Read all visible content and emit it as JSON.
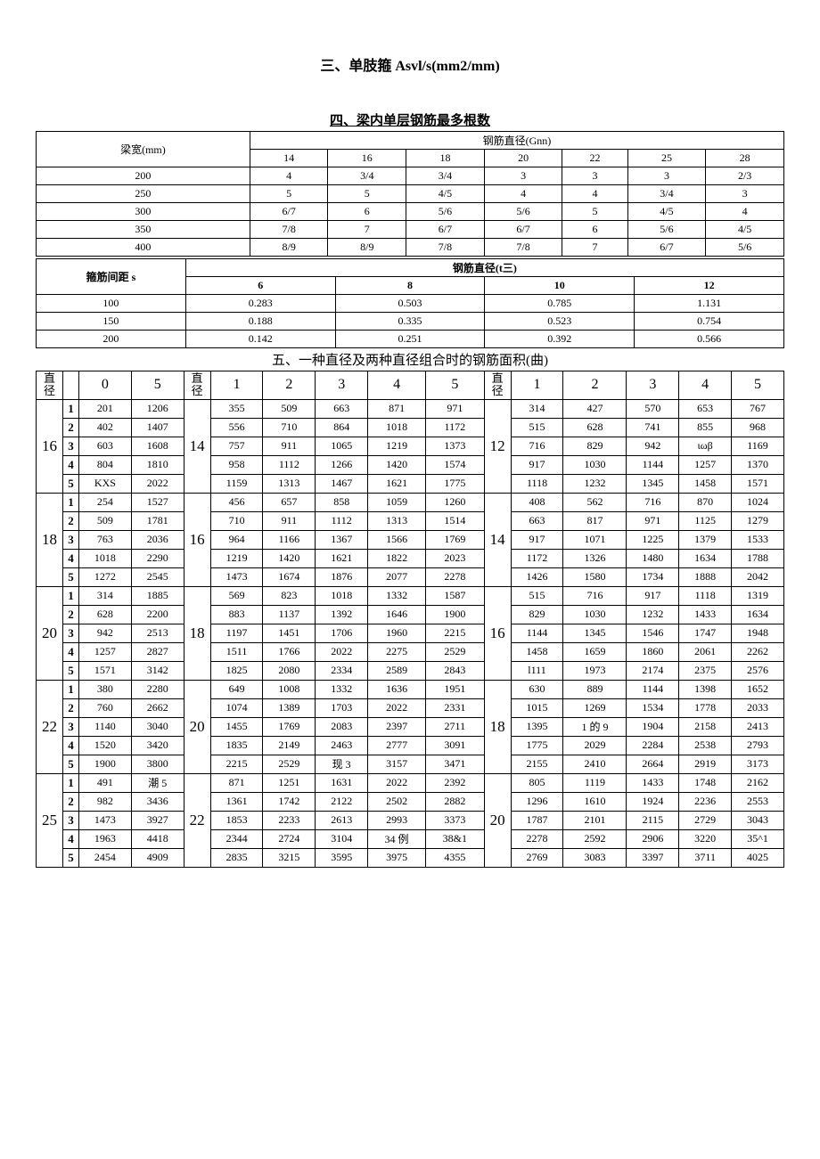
{
  "titles": {
    "t3": "三、单肢箍 Asvl/s(mm2/mm)",
    "t4": "四、梁内单层钢筋最多根数",
    "t5": "五、一种直径及两种直径组合时的钢筋面积(曲)"
  },
  "table4": {
    "row_header_label": "梁宽(mm)",
    "group_header": "钢筋直径(Gnn)",
    "cols": [
      "14",
      "16",
      "18",
      "20",
      "22",
      "25",
      "28"
    ],
    "row_labels": [
      "200",
      "250",
      "300",
      "350",
      "400"
    ],
    "rows": [
      [
        "4",
        "3/4",
        "3/4",
        "3",
        "3",
        "3",
        "2/3"
      ],
      [
        "5",
        "5",
        "4/5",
        "4",
        "4",
        "3/4",
        "3"
      ],
      [
        "6/7",
        "6",
        "5/6",
        "5/6",
        "5",
        "4/5",
        "4"
      ],
      [
        "7/8",
        "7",
        "6/7",
        "6/7",
        "6",
        "5/6",
        "4/5"
      ],
      [
        "8/9",
        "8/9",
        "7/8",
        "7/8",
        "7",
        "6/7",
        "5/6"
      ]
    ]
  },
  "table3": {
    "row_header_label": "箍筋间距 s",
    "group_header": "钢筋直径(t三)",
    "cols": [
      "6",
      "8",
      "10",
      "12"
    ],
    "row_labels": [
      "100",
      "150",
      "200"
    ],
    "rows": [
      [
        "0.283",
        "0.503",
        "0.785",
        "1.131"
      ],
      [
        "0.188",
        "0.335",
        "0.523",
        "0.754"
      ],
      [
        "0.142",
        "0.251",
        "0.392",
        "0.566"
      ]
    ]
  },
  "table5": {
    "dia_label": "直径",
    "blockA": {
      "cols": [
        "0",
        "5"
      ],
      "groups": [
        {
          "dia": "16",
          "rows": [
            [
              "201",
              "1206"
            ],
            [
              "402",
              "1407"
            ],
            [
              "603",
              "1608"
            ],
            [
              "804",
              "1810"
            ],
            [
              "KXS",
              "2022"
            ]
          ]
        },
        {
          "dia": "18",
          "rows": [
            [
              "254",
              "1527"
            ],
            [
              "509",
              "1781"
            ],
            [
              "763",
              "2036"
            ],
            [
              "1018",
              "2290"
            ],
            [
              "1272",
              "2545"
            ]
          ]
        },
        {
          "dia": "20",
          "rows": [
            [
              "314",
              "1885"
            ],
            [
              "628",
              "2200"
            ],
            [
              "942",
              "2513"
            ],
            [
              "1257",
              "2827"
            ],
            [
              "1571",
              "3142"
            ]
          ]
        },
        {
          "dia": "22",
          "rows": [
            [
              "380",
              "2280"
            ],
            [
              "760",
              "2662"
            ],
            [
              "1140",
              "3040"
            ],
            [
              "1520",
              "3420"
            ],
            [
              "1900",
              "3800"
            ]
          ]
        },
        {
          "dia": "25",
          "rows": [
            [
              "491",
              "潮 5"
            ],
            [
              "982",
              "3436"
            ],
            [
              "1473",
              "3927"
            ],
            [
              "1963",
              "4418"
            ],
            [
              "2454",
              "4909"
            ]
          ]
        }
      ]
    },
    "blockB": {
      "cols": [
        "1",
        "2",
        "3",
        "4",
        "5"
      ],
      "groups": [
        {
          "dia": "14",
          "rows": [
            [
              "355",
              "509",
              "663",
              "871",
              "971"
            ],
            [
              "556",
              "710",
              "864",
              "1018",
              "1172"
            ],
            [
              "757",
              "911",
              "1065",
              "1219",
              "1373"
            ],
            [
              "958",
              "1112",
              "1266",
              "1420",
              "1574"
            ],
            [
              "1159",
              "1313",
              "1467",
              "1621",
              "1775"
            ]
          ]
        },
        {
          "dia": "16",
          "rows": [
            [
              "456",
              "657",
              "858",
              "1059",
              "1260"
            ],
            [
              "710",
              "911",
              "1112",
              "1313",
              "1514"
            ],
            [
              "964",
              "1166",
              "1367",
              "1566",
              "1769"
            ],
            [
              "1219",
              "1420",
              "1621",
              "1822",
              "2023"
            ],
            [
              "1473",
              "1674",
              "1876",
              "2077",
              "2278"
            ]
          ]
        },
        {
          "dia": "18",
          "rows": [
            [
              "569",
              "823",
              "1018",
              "1332",
              "1587"
            ],
            [
              "883",
              "1137",
              "1392",
              "1646",
              "1900"
            ],
            [
              "1197",
              "1451",
              "1706",
              "1960",
              "2215"
            ],
            [
              "1511",
              "1766",
              "2022",
              "2275",
              "2529"
            ],
            [
              "1825",
              "2080",
              "2334",
              "2589",
              "2843"
            ]
          ]
        },
        {
          "dia": "20",
          "rows": [
            [
              "649",
              "1008",
              "1332",
              "1636",
              "1951"
            ],
            [
              "1074",
              "1389",
              "1703",
              "2022",
              "2331"
            ],
            [
              "1455",
              "1769",
              "2083",
              "2397",
              "2711"
            ],
            [
              "1835",
              "2149",
              "2463",
              "2777",
              "3091"
            ],
            [
              "2215",
              "2529",
              "现 3",
              "3157",
              "3471"
            ]
          ]
        },
        {
          "dia": "22",
          "rows": [
            [
              "871",
              "1251",
              "1631",
              "2022",
              "2392"
            ],
            [
              "1361",
              "1742",
              "2122",
              "2502",
              "2882"
            ],
            [
              "1853",
              "2233",
              "2613",
              "2993",
              "3373"
            ],
            [
              "2344",
              "2724",
              "3104",
              "34 例",
              "38&1"
            ],
            [
              "2835",
              "3215",
              "3595",
              "3975",
              "4355"
            ]
          ]
        }
      ]
    },
    "blockC": {
      "cols": [
        "1",
        "2",
        "3",
        "4",
        "5"
      ],
      "groups": [
        {
          "dia": "12",
          "rows": [
            [
              "314",
              "427",
              "570",
              "653",
              "767"
            ],
            [
              "515",
              "628",
              "741",
              "855",
              "968"
            ],
            [
              "716",
              "829",
              "942",
              "ιωβ",
              "1169"
            ],
            [
              "917",
              "1030",
              "1144",
              "1257",
              "1370"
            ],
            [
              "1118",
              "1232",
              "1345",
              "1458",
              "1571"
            ]
          ]
        },
        {
          "dia": "14",
          "rows": [
            [
              "408",
              "562",
              "716",
              "870",
              "1024"
            ],
            [
              "663",
              "817",
              "971",
              "1125",
              "1279"
            ],
            [
              "917",
              "1071",
              "1225",
              "1379",
              "1533"
            ],
            [
              "1172",
              "1326",
              "1480",
              "1634",
              "1788"
            ],
            [
              "1426",
              "1580",
              "1734",
              "1888",
              "2042"
            ]
          ]
        },
        {
          "dia": "16",
          "rows": [
            [
              "515",
              "716",
              "917",
              "1118",
              "1319"
            ],
            [
              "829",
              "1030",
              "1232",
              "1433",
              "1634"
            ],
            [
              "1144",
              "1345",
              "1546",
              "1747",
              "1948"
            ],
            [
              "1458",
              "1659",
              "1860",
              "2061",
              "2262"
            ],
            [
              "l111",
              "1973",
              "2174",
              "2375",
              "2576"
            ]
          ]
        },
        {
          "dia": "18",
          "rows": [
            [
              "630",
              "889",
              "1144",
              "1398",
              "1652"
            ],
            [
              "1015",
              "1269",
              "1534",
              "1778",
              "2033"
            ],
            [
              "1395",
              "1 的 9",
              "1904",
              "2158",
              "2413"
            ],
            [
              "1775",
              "2029",
              "2284",
              "2538",
              "2793"
            ],
            [
              "2155",
              "2410",
              "2664",
              "2919",
              "3173"
            ]
          ]
        },
        {
          "dia": "20",
          "rows": [
            [
              "805",
              "1119",
              "1433",
              "1748",
              "2162"
            ],
            [
              "1296",
              "1610",
              "1924",
              "2236",
              "2553"
            ],
            [
              "1787",
              "2101",
              "2115",
              "2729",
              "3043"
            ],
            [
              "2278",
              "2592",
              "2906",
              "3220",
              "35^1"
            ],
            [
              "2769",
              "3083",
              "3397",
              "3711",
              "4025"
            ]
          ]
        }
      ]
    }
  }
}
